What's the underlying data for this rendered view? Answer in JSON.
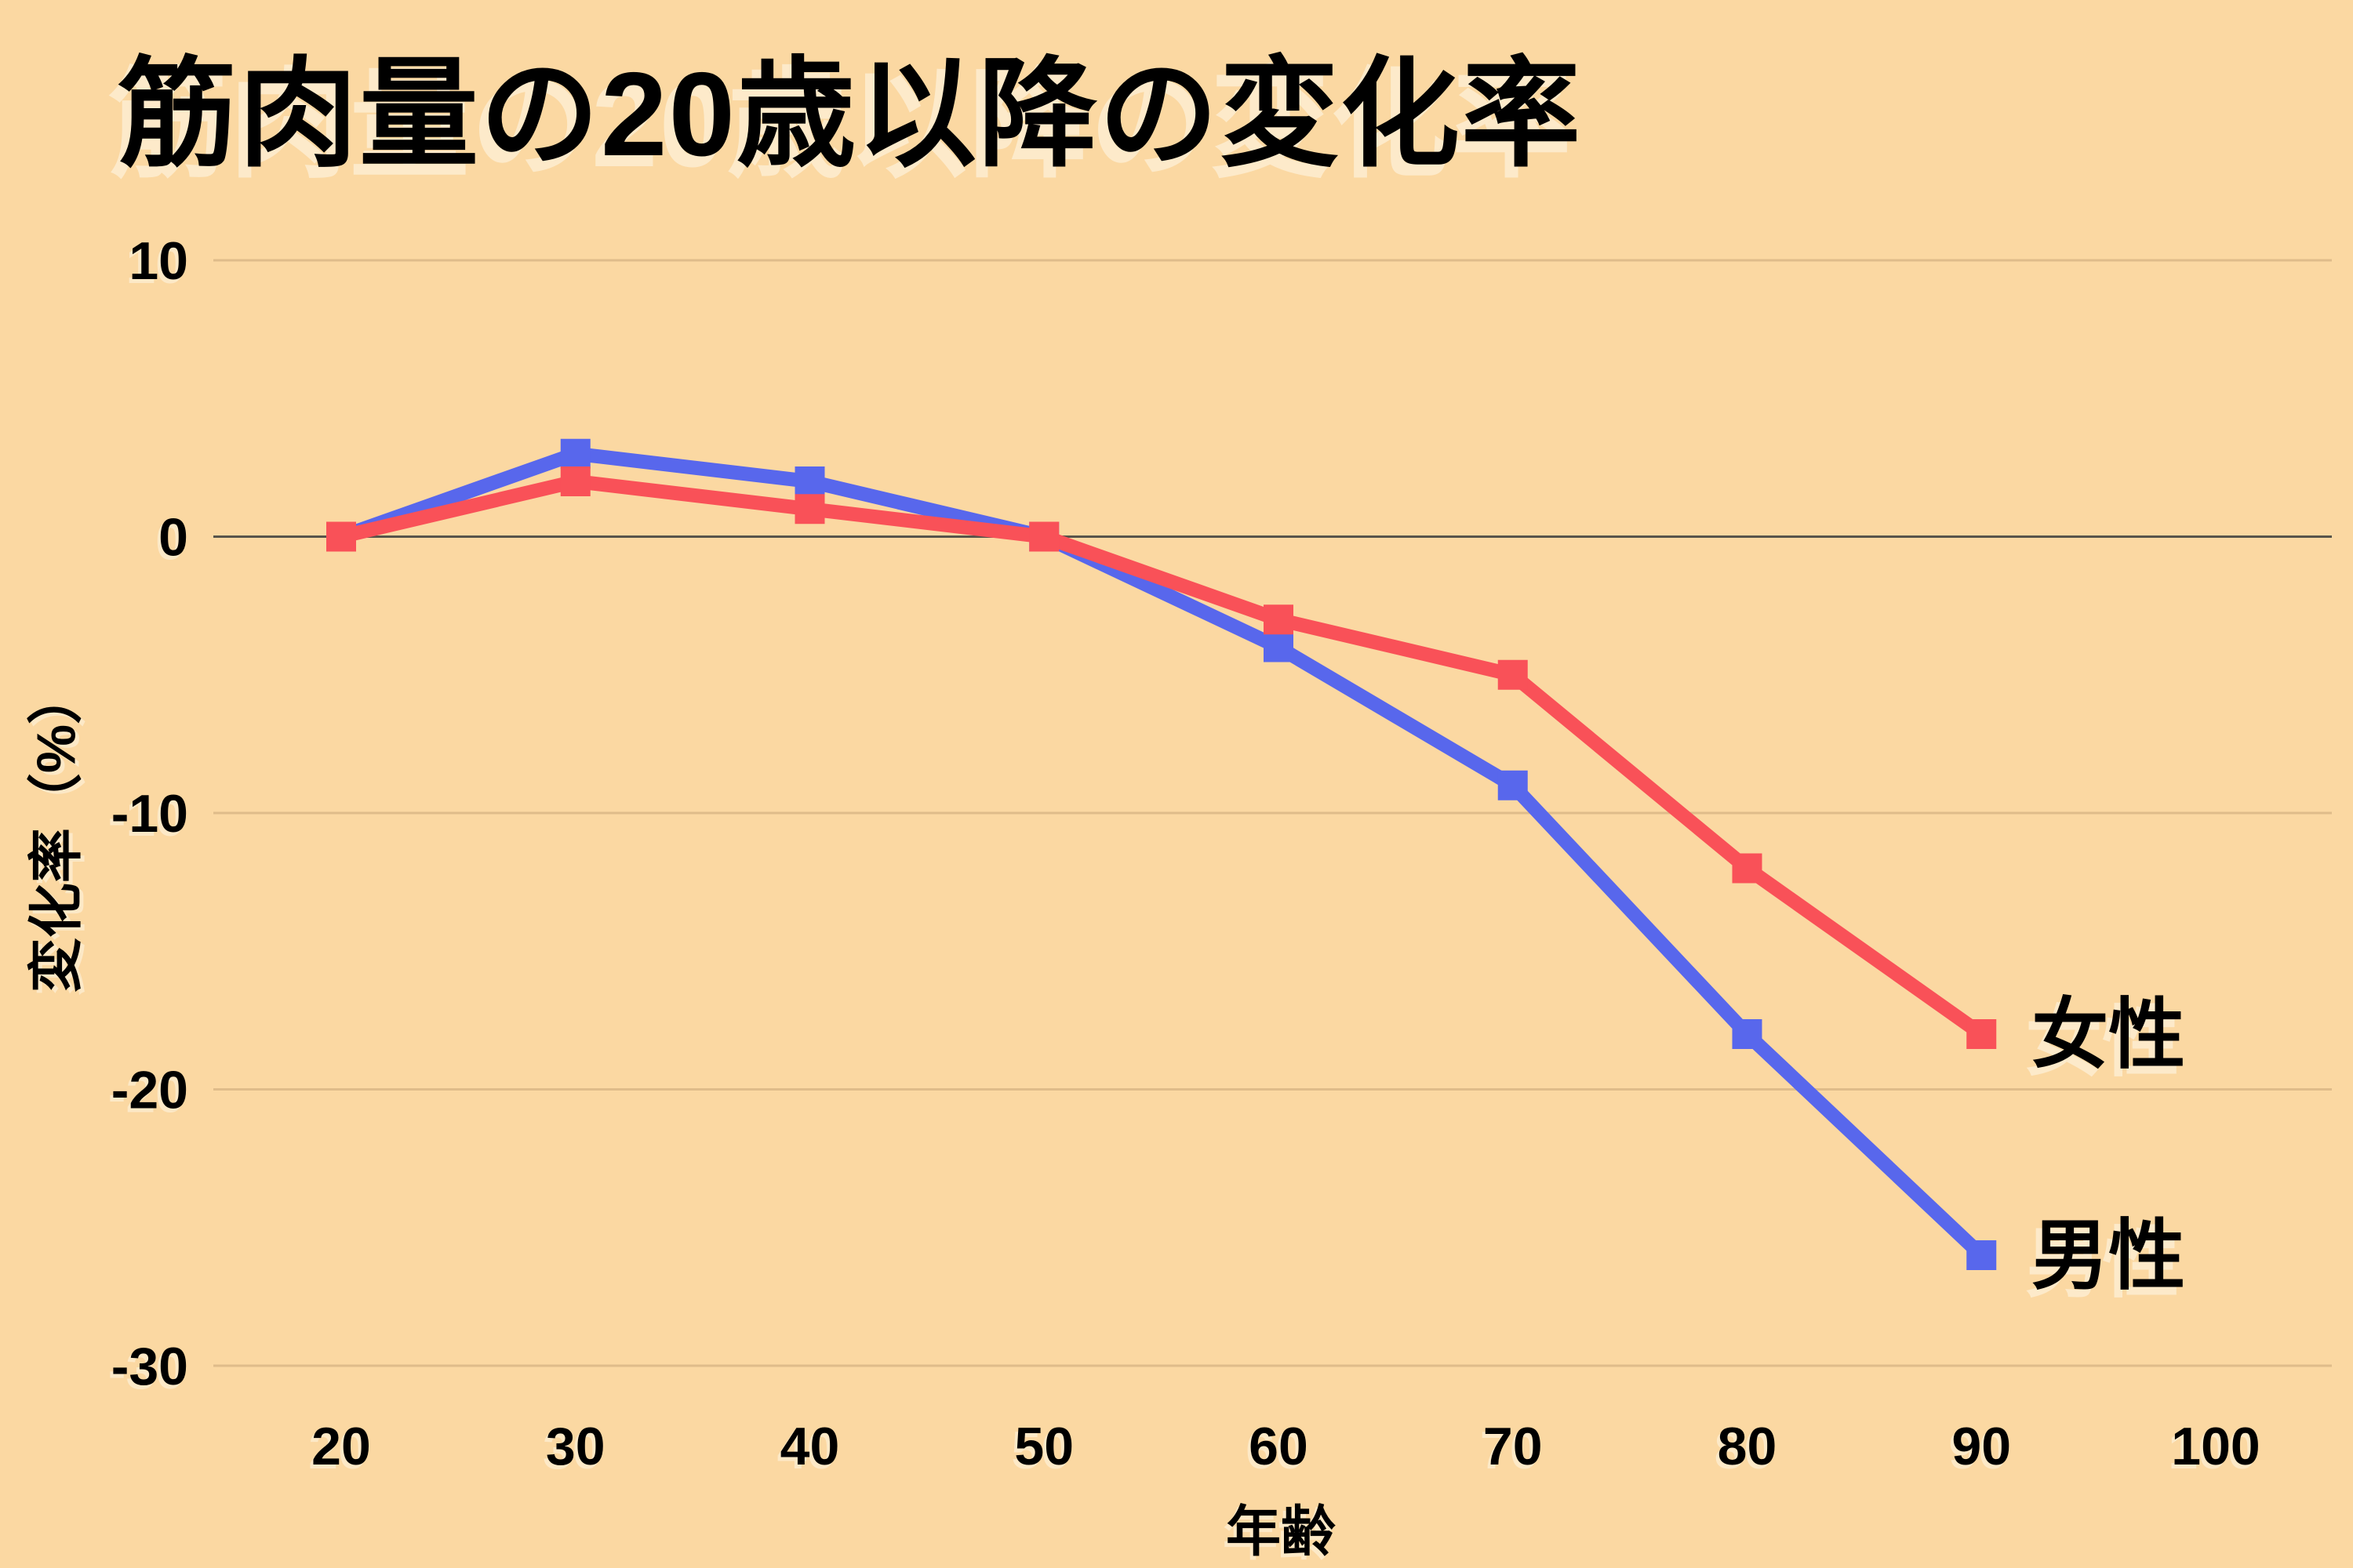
{
  "colors": {
    "background": "#FBD8A2",
    "grid_minor": "#DFBC8A",
    "grid_zero": "#57544B",
    "text": "#000000",
    "male_blue": "#5867EC",
    "female_red": "#F95158"
  },
  "chart_data": {
    "type": "line",
    "title": "筋肉量の20歳以降の変化率",
    "xlabel": "年齢",
    "ylabel": "変化率（%）",
    "x": [
      20,
      30,
      40,
      50,
      60,
      70,
      80,
      90
    ],
    "x_ticks": [
      20,
      30,
      40,
      50,
      60,
      70,
      80,
      90,
      100
    ],
    "y_ticks": [
      10,
      0,
      -10,
      -20,
      -30
    ],
    "xlim": [
      20,
      100
    ],
    "ylim": [
      -30,
      10
    ],
    "grid": "horizontal-only",
    "legend_position": "right-of-line-end",
    "marker": "square",
    "series": [
      {
        "name": "男性",
        "color": "#5867EC",
        "values": [
          0,
          3,
          2,
          0,
          -4,
          -9,
          -18,
          -26
        ]
      },
      {
        "name": "女性",
        "color": "#F95158",
        "values": [
          0,
          2,
          1,
          0,
          -3,
          -5,
          -12,
          -18
        ]
      }
    ]
  }
}
